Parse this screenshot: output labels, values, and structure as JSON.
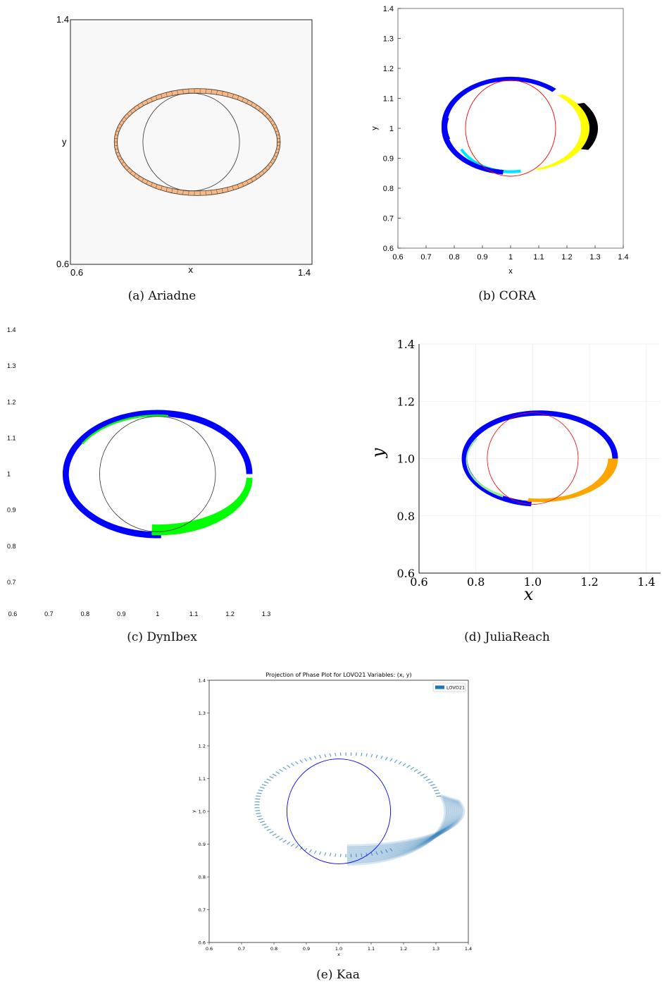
{
  "chart_data": [
    {
      "id": "ariadne",
      "caption": "(a)  Ariadne",
      "type": "area",
      "xlabel": "x",
      "ylabel": "y",
      "xlim": [
        0.6,
        1.4
      ],
      "ylim": [
        0.6,
        1.4
      ],
      "x_ticks": [
        "0.6",
        "1.4"
      ],
      "y_ticks": [
        "0.6",
        "1.4"
      ],
      "background": "#f8f8f8",
      "band": {
        "color": "#f7b886",
        "edge": "#333333",
        "center": [
          1.0,
          1.0
        ],
        "outer_radius": [
          0.275,
          0.175
        ],
        "inner_radius": [
          0.265,
          0.16
        ]
      },
      "circle": {
        "center": [
          1.0,
          1.0
        ],
        "radius": 0.16,
        "color": "#333333"
      }
    },
    {
      "id": "cora",
      "caption": "(b)  CORA",
      "type": "area",
      "xlabel": "x",
      "ylabel": "y",
      "xlim": [
        0.6,
        1.4
      ],
      "ylim": [
        0.6,
        1.4
      ],
      "x_ticks": [
        "0.6",
        "0.7",
        "0.8",
        "0.9",
        "1",
        "1.1",
        "1.2",
        "1.3",
        "1.4"
      ],
      "y_ticks": [
        "0.6",
        "0.7",
        "0.8",
        "0.9",
        "1",
        "1.1",
        "1.2",
        "1.3",
        "1.4"
      ],
      "colors": {
        "blue": "#0000ff",
        "yellow": "#ffff00",
        "black": "#000000",
        "cyan": "#00e5ff",
        "circle": "#ff0000"
      },
      "circle": {
        "center": [
          1.0,
          1.0
        ],
        "radius": 0.16
      }
    },
    {
      "id": "dynibex",
      "caption": "(c)  DynIbex",
      "type": "area",
      "xlim": [
        0.6,
        1.4
      ],
      "ylim": [
        0.6,
        1.4
      ],
      "x_ticks": [
        "0.6",
        "0.7",
        "0.8",
        "0.9",
        "1",
        "1.1",
        "1.2",
        "1.3"
      ],
      "y_ticks": [
        "0.7",
        "0.8",
        "0.9",
        "1",
        "1.1",
        "1.2",
        "1.3",
        "1.4"
      ],
      "colors": {
        "blue": "#0000ff",
        "green": "#00ff00",
        "circle": "#333333"
      },
      "circle": {
        "center": [
          1.0,
          1.0
        ],
        "radius": 0.16
      }
    },
    {
      "id": "julia",
      "caption": "(d)  JuliaReach",
      "type": "area",
      "xlabel": "x",
      "ylabel": "y",
      "xlim": [
        0.6,
        1.45
      ],
      "ylim": [
        0.6,
        1.4
      ],
      "x_ticks": [
        "0.6",
        "0.8",
        "1.0",
        "1.2",
        "1.4"
      ],
      "y_ticks": [
        "0.6",
        "0.8",
        "1.0",
        "1.2",
        "1.4"
      ],
      "colors": {
        "blue": "#0000ff",
        "orange": "#ffa500",
        "lightgreen": "#90ee90",
        "circle": "#ff0000"
      },
      "circle": {
        "center": [
          1.0,
          1.0
        ],
        "radius": 0.16
      }
    },
    {
      "id": "kaa",
      "caption": "(e)  Kaa",
      "type": "area",
      "title": "Projection of Phase Plot for LOVO21 Variables: (x, y)",
      "xlabel": "x",
      "ylabel": "y",
      "xlim": [
        0.6,
        1.4
      ],
      "ylim": [
        0.6,
        1.4
      ],
      "x_ticks": [
        "0.6",
        "0.7",
        "0.8",
        "0.9",
        "1.0",
        "1.1",
        "1.2",
        "1.3",
        "1.4"
      ],
      "y_ticks": [
        "0.6",
        "0.7",
        "0.8",
        "0.9",
        "1.0",
        "1.1",
        "1.2",
        "1.3",
        "1.4"
      ],
      "legend": {
        "entries": [
          "LOVO21"
        ],
        "placement": "top-right"
      },
      "colors": {
        "series": "#1f77b4",
        "circle": "#0000ff"
      },
      "circle": {
        "center": [
          1.0,
          1.0
        ],
        "radius": 0.16
      }
    }
  ]
}
